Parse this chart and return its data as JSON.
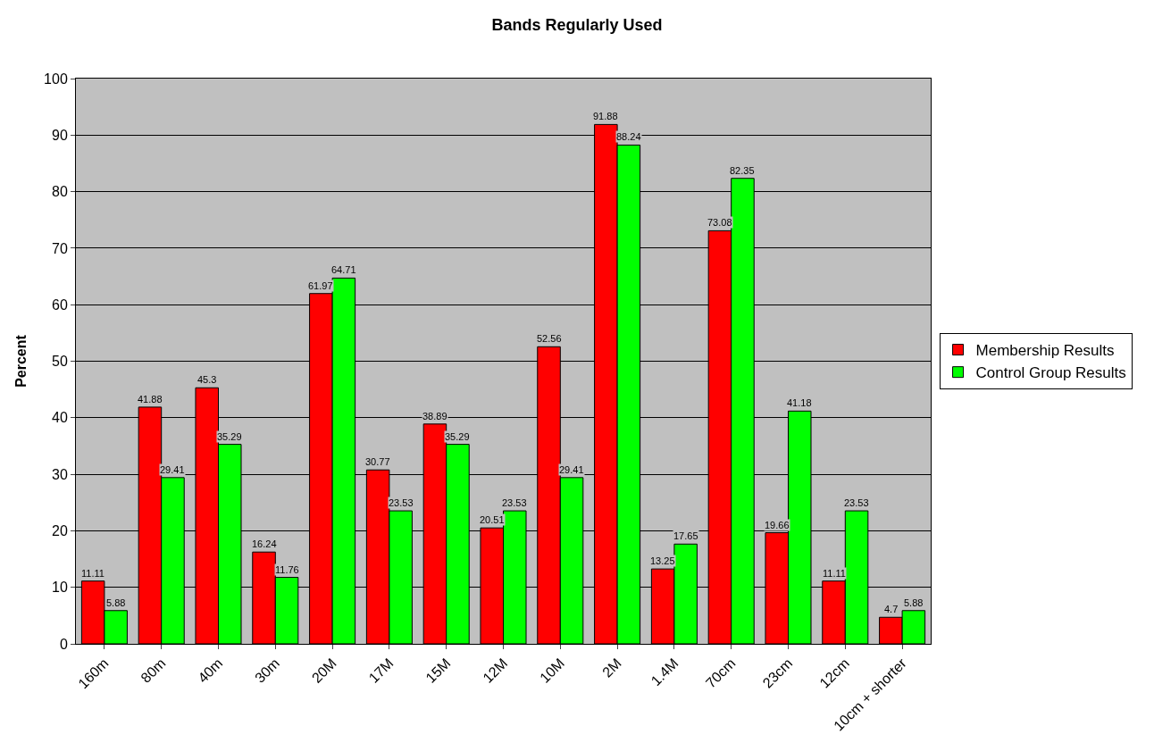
{
  "chart_data": {
    "type": "bar",
    "title": "Bands Regularly Used",
    "ylabel": "Percent",
    "categories": [
      "160m",
      "80m",
      "40m",
      "30m",
      "20M",
      "17M",
      "15M",
      "12M",
      "10M",
      "2M",
      "1.4M",
      "70cm",
      "23cm",
      "12cm",
      "10cm + shorter"
    ],
    "series": [
      {
        "name": "Membership Results",
        "color": "#ff0000",
        "values": [
          11.11,
          41.88,
          45.3,
          16.24,
          61.97,
          30.77,
          38.89,
          20.51,
          52.56,
          91.88,
          13.25,
          73.08,
          19.66,
          11.11,
          4.7
        ]
      },
      {
        "name": "Control Group Results",
        "color": "#00ff00",
        "values": [
          5.88,
          29.41,
          35.29,
          11.76,
          64.71,
          23.53,
          35.29,
          23.53,
          29.41,
          88.24,
          17.65,
          82.35,
          41.18,
          23.53,
          5.88
        ]
      }
    ],
    "ylim": [
      0,
      100
    ],
    "yticks": [
      0,
      10,
      20,
      30,
      40,
      50,
      60,
      70,
      80,
      90,
      100
    ],
    "grid": "y",
    "legend": "right",
    "data_labels": true
  }
}
